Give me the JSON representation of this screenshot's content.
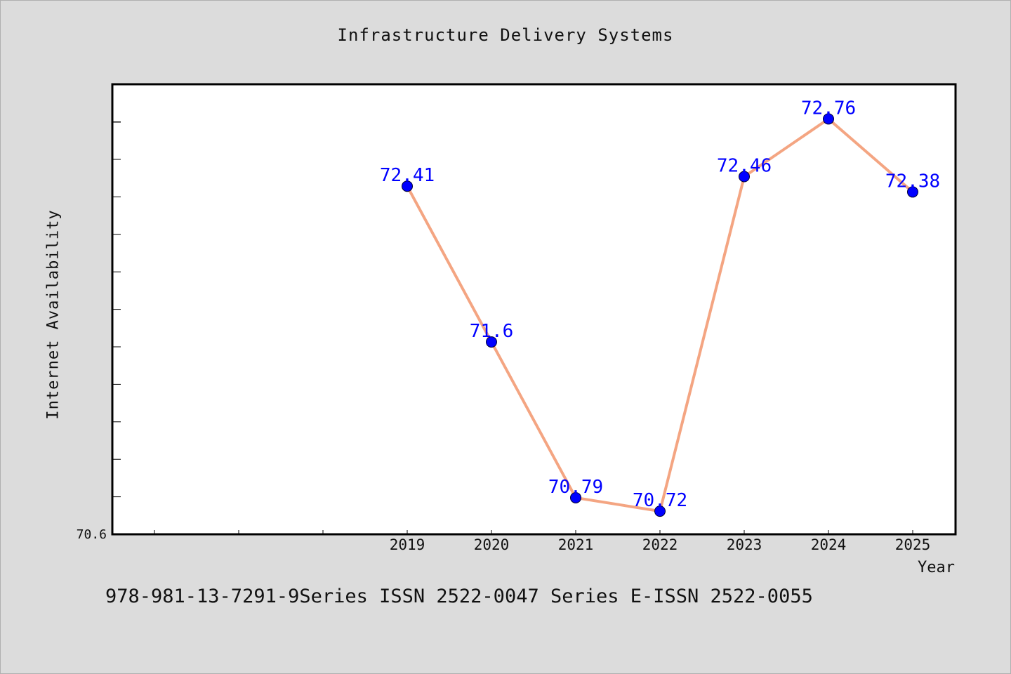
{
  "chart_data": {
    "type": "line",
    "title": "Infrastructure Delivery Systems",
    "xlabel": "Year",
    "ylabel": "Internet Availability",
    "categories": [
      "2019",
      "2020",
      "2021",
      "2022",
      "2023",
      "2024",
      "2025"
    ],
    "series": [
      {
        "values": [
          72.41,
          71.6,
          70.79,
          70.72,
          72.46,
          72.76,
          72.38
        ],
        "data_labels": [
          "72.41",
          "71.6",
          "70.79",
          "70.72",
          "72.46",
          "72.76",
          "72.38"
        ],
        "color": "#f4a582",
        "marker_color": "#0000ff",
        "label_color": "#0000ff"
      }
    ],
    "y_tick_labels": [
      "70.6"
    ],
    "ylim": [
      70.6,
      72.9
    ],
    "grid": false,
    "legend": "none"
  },
  "caption": "978-981-13-7291-9Series ISSN 2522-0047 Series E-ISSN 2522-0055",
  "colors": {
    "background": "#dcdcdc",
    "plot_background": "#ffffff"
  }
}
